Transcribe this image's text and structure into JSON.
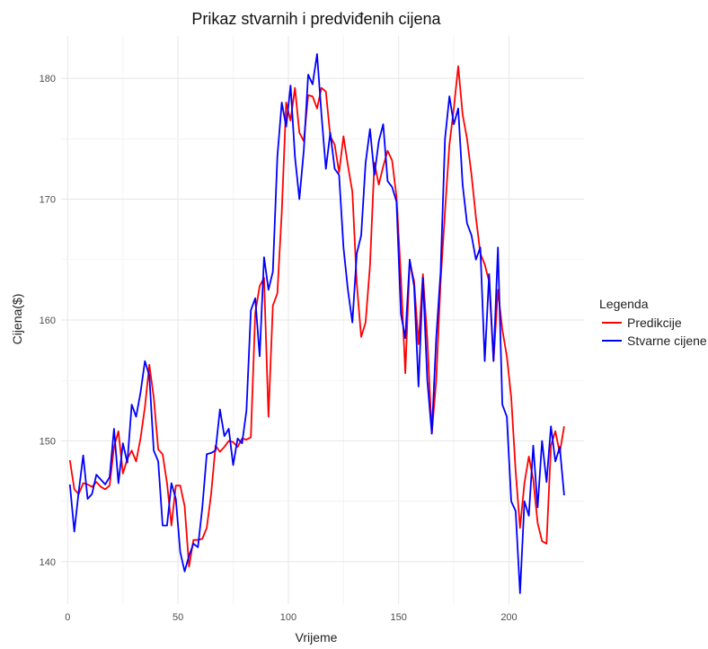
{
  "chart_data": {
    "type": "line",
    "title": "Prikaz stvarnih i predviđenih cijena",
    "xlabel": "Vrijeme",
    "ylabel": "Cijena($)",
    "xlim": [
      -3,
      234
    ],
    "ylim": [
      136.5,
      183.5
    ],
    "x_ticks": [
      0,
      50,
      100,
      150,
      200
    ],
    "y_ticks": [
      140,
      150,
      160,
      170,
      180
    ],
    "x_tick_labels": [
      "0",
      "50",
      "100",
      "150",
      "200"
    ],
    "y_tick_labels": [
      "140",
      "150",
      "160",
      "170",
      "180"
    ],
    "grid": true,
    "legend": {
      "title": "Legenda",
      "position": "right"
    },
    "series": [
      {
        "name": "Predikcije",
        "color": "#ff0000",
        "x": [
          1,
          3,
          5,
          7,
          9,
          11,
          13,
          15,
          17,
          19,
          21,
          23,
          25,
          27,
          29,
          31,
          33,
          35,
          37,
          39,
          41,
          43,
          45,
          47,
          49,
          51,
          53,
          55,
          57,
          59,
          61,
          63,
          65,
          67,
          69,
          71,
          73,
          75,
          77,
          79,
          81,
          83,
          85,
          87,
          89,
          91,
          93,
          95,
          97,
          99,
          101,
          103,
          105,
          107,
          109,
          111,
          113,
          115,
          117,
          119,
          121,
          123,
          125,
          127,
          129,
          131,
          133,
          135,
          137,
          139,
          141,
          143,
          145,
          147,
          149,
          151,
          153,
          155,
          157,
          159,
          161,
          163,
          165,
          167,
          169,
          171,
          173,
          175,
          177,
          179,
          181,
          183,
          185,
          187,
          189,
          191,
          193,
          195,
          197,
          199,
          201,
          203,
          205,
          207,
          209,
          211,
          213,
          215,
          217,
          219,
          221,
          223,
          225
        ],
        "y": [
          148.4,
          146.0,
          145.6,
          146.5,
          146.4,
          146.2,
          146.6,
          146.2,
          146.0,
          146.3,
          149.5,
          150.8,
          147.3,
          148.5,
          149.2,
          148.3,
          150.2,
          152.8,
          156.3,
          153.6,
          149.3,
          148.9,
          146.5,
          143.0,
          146.3,
          146.3,
          144.6,
          139.6,
          141.8,
          141.8,
          141.9,
          142.8,
          145.6,
          149.6,
          149.1,
          149.5,
          150.0,
          149.9,
          149.5,
          150.2,
          150.1,
          150.3,
          160.6,
          162.8,
          163.5,
          152.0,
          161.2,
          162.2,
          168.9,
          178.0,
          176.5,
          179.2,
          175.5,
          174.8,
          178.6,
          178.5,
          177.5,
          179.2,
          178.9,
          175.2,
          174.5,
          172.2,
          175.2,
          172.8,
          170.6,
          163.0,
          158.6,
          159.8,
          164.5,
          173.0,
          171.2,
          172.7,
          174.0,
          173.2,
          170.2,
          163.6,
          155.6,
          164.8,
          163.2,
          158.0,
          163.8,
          158.4,
          150.6,
          155.0,
          163.2,
          169.0,
          174.5,
          177.5,
          181.0,
          177.0,
          175.0,
          172.0,
          168.5,
          165.5,
          164.6,
          163.2,
          156.6,
          162.5,
          159.2,
          157.0,
          153.6,
          147.5,
          142.8,
          146.5,
          148.7,
          146.8,
          143.2,
          141.7,
          141.5,
          149.6,
          150.8,
          149.0,
          151.2
        ]
      },
      {
        "name": "Stvarne cijene",
        "color": "#0000ff",
        "x": [
          1,
          3,
          5,
          7,
          9,
          11,
          13,
          15,
          17,
          19,
          21,
          23,
          25,
          27,
          29,
          31,
          33,
          35,
          37,
          39,
          41,
          43,
          45,
          47,
          49,
          51,
          53,
          55,
          57,
          59,
          61,
          63,
          65,
          67,
          69,
          71,
          73,
          75,
          77,
          79,
          81,
          83,
          85,
          87,
          89,
          91,
          93,
          95,
          97,
          99,
          101,
          103,
          105,
          107,
          109,
          111,
          113,
          115,
          117,
          119,
          121,
          123,
          125,
          127,
          129,
          131,
          133,
          135,
          137,
          139,
          141,
          143,
          145,
          147,
          149,
          151,
          153,
          155,
          157,
          159,
          161,
          163,
          165,
          167,
          169,
          171,
          173,
          175,
          177,
          179,
          181,
          183,
          185,
          187,
          189,
          191,
          193,
          195,
          197,
          199,
          201,
          203,
          205,
          207,
          209,
          211,
          213,
          215,
          217,
          219,
          221,
          223,
          225
        ],
        "y": [
          146.4,
          142.5,
          145.8,
          148.8,
          145.2,
          145.6,
          147.2,
          146.8,
          146.4,
          147.0,
          151.0,
          146.5,
          149.8,
          148.2,
          153.0,
          152.0,
          154.0,
          156.6,
          155.4,
          149.2,
          148.3,
          143.0,
          143.0,
          146.5,
          145.2,
          140.8,
          139.2,
          140.5,
          141.5,
          141.2,
          144.5,
          148.9,
          149.0,
          149.2,
          152.6,
          150.4,
          151.0,
          148.0,
          150.2,
          149.8,
          152.5,
          160.8,
          161.8,
          157.0,
          165.2,
          162.5,
          164.0,
          173.5,
          178.0,
          176.0,
          179.4,
          173.5,
          170.0,
          174.0,
          180.3,
          179.5,
          182.0,
          177.0,
          172.5,
          175.5,
          172.5,
          172.0,
          166.0,
          162.5,
          159.8,
          165.5,
          167.0,
          173.0,
          175.8,
          172.0,
          174.8,
          176.2,
          171.5,
          171.0,
          169.8,
          160.5,
          158.5,
          165.0,
          162.8,
          154.5,
          163.5,
          155.0,
          150.6,
          158.5,
          164.0,
          175.0,
          178.5,
          176.2,
          177.5,
          171.2,
          168.0,
          167.0,
          165.0,
          166.0,
          156.6,
          163.8,
          156.6,
          166.0,
          153.0,
          152.0,
          145.0,
          144.2,
          137.4,
          145.0,
          143.8,
          149.6,
          144.5,
          150.0,
          146.6,
          151.2,
          148.3,
          149.5,
          145.5
        ]
      }
    ]
  }
}
